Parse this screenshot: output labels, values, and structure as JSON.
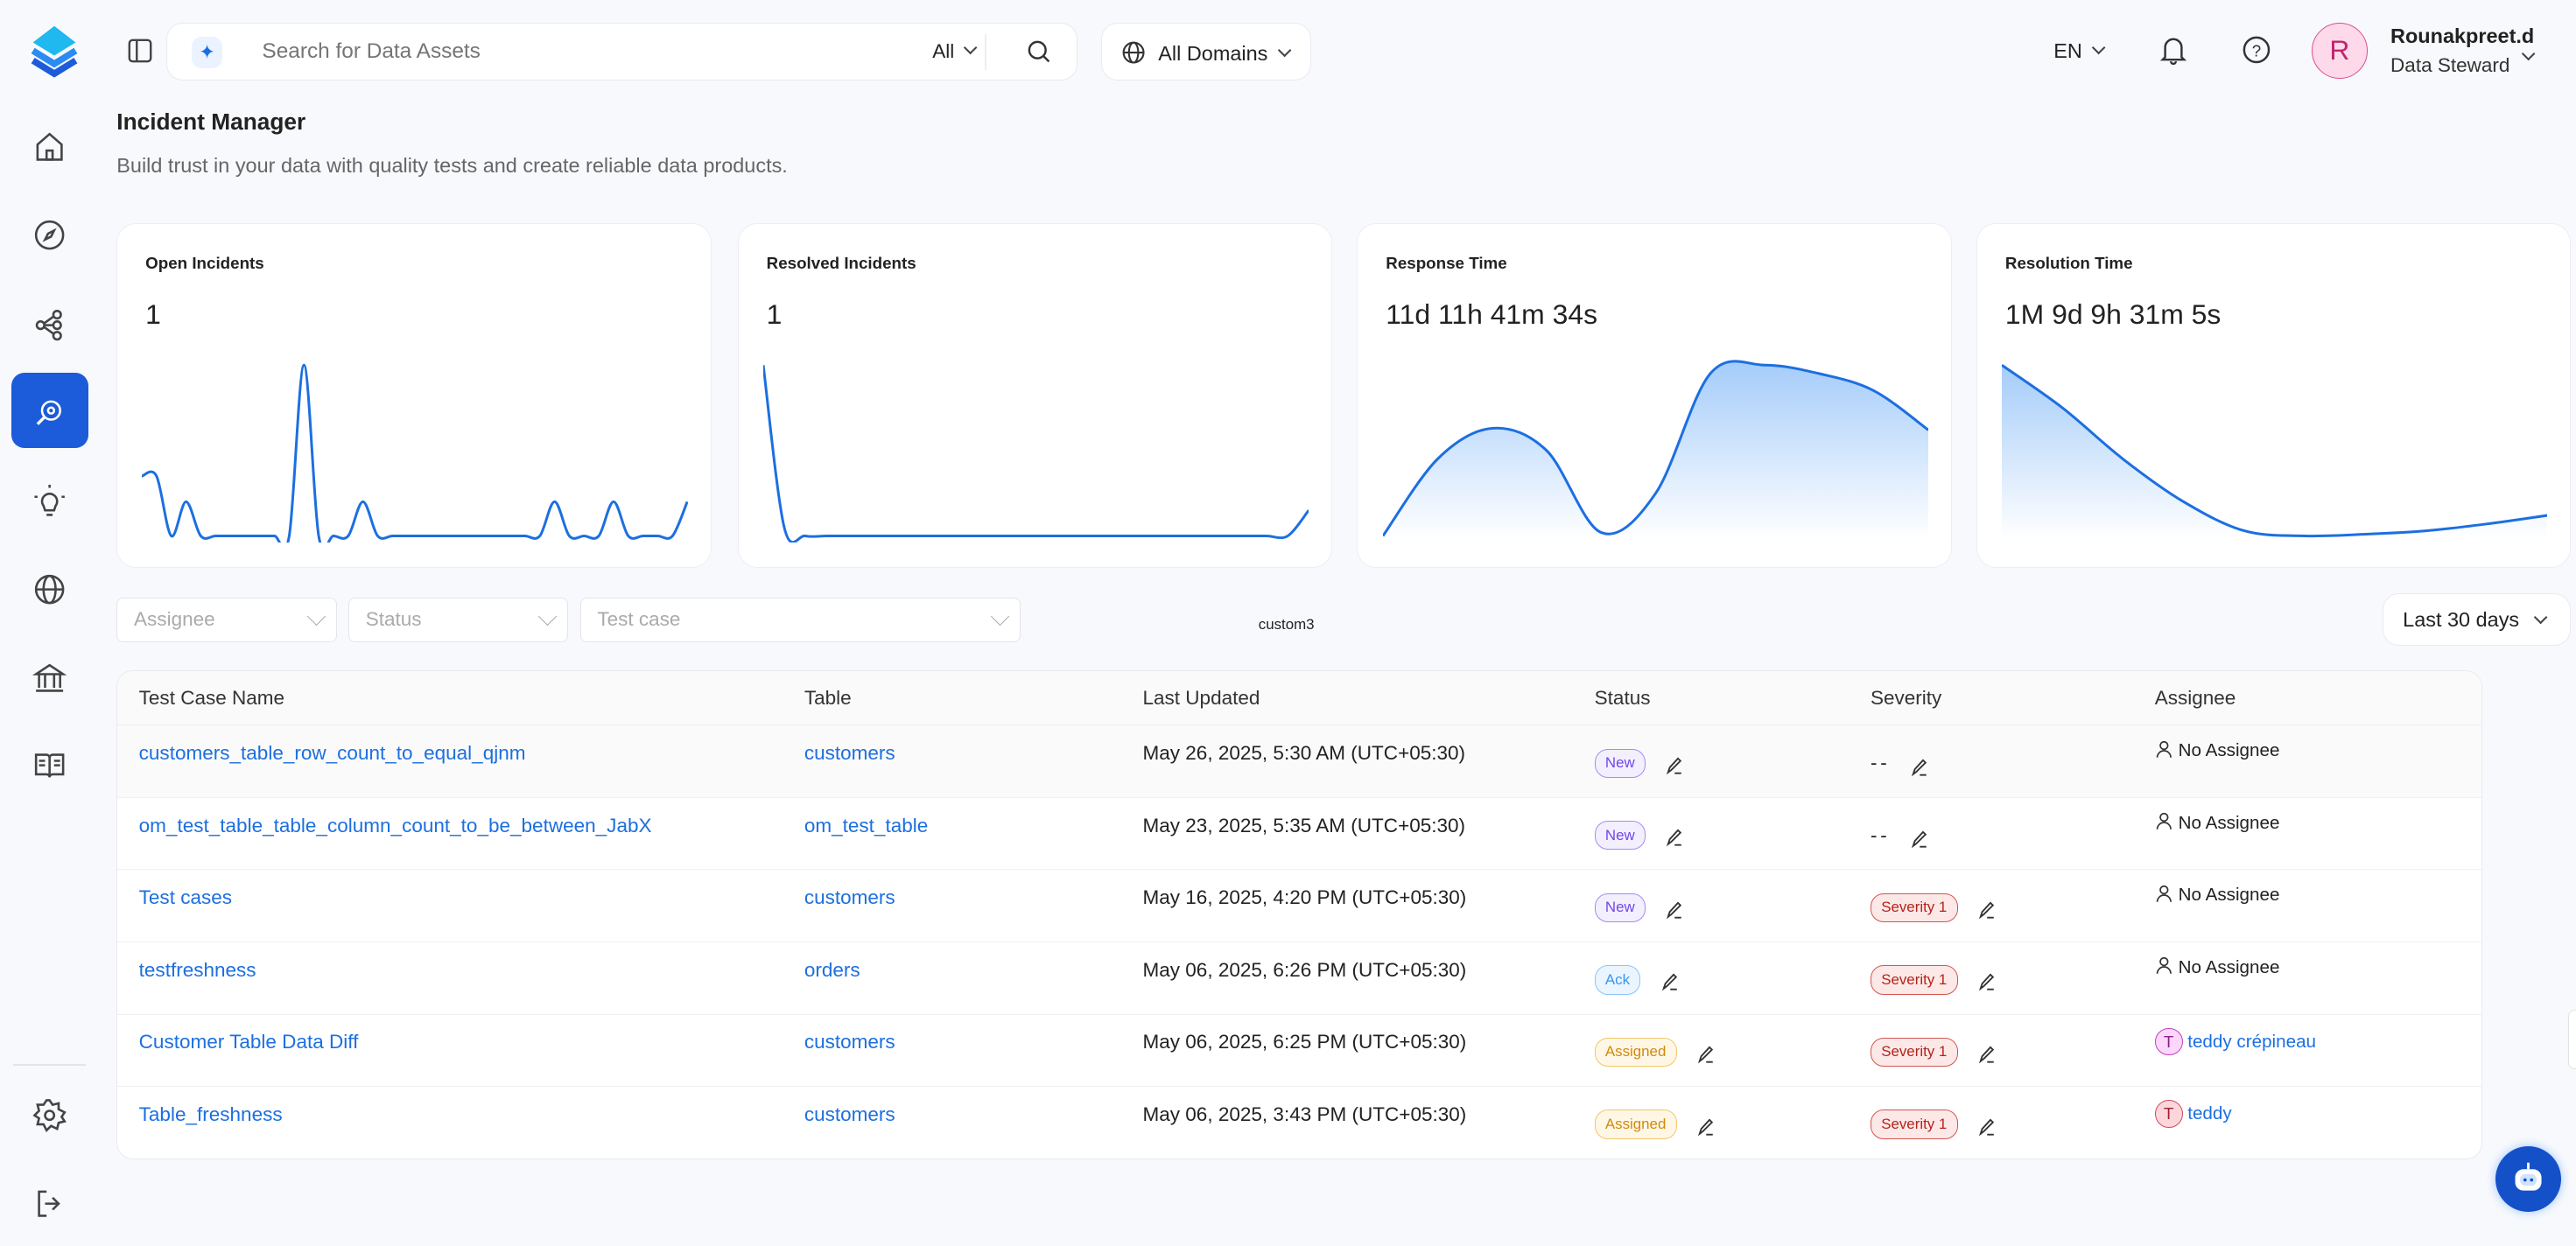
{
  "colors": {
    "accent": "#1c5bd9",
    "link": "#1c6fe0",
    "chart_line": "#1c6fe0"
  },
  "sidebar": {
    "items": [
      {
        "icon": "home-icon"
      },
      {
        "icon": "explore-compass-icon"
      },
      {
        "icon": "lineage-icon"
      },
      {
        "icon": "data-quality-icon",
        "active": true
      },
      {
        "icon": "insights-bulb-icon"
      },
      {
        "icon": "domains-globe-icon"
      },
      {
        "icon": "governance-bank-icon"
      },
      {
        "icon": "glossary-book-icon"
      }
    ],
    "bottom": [
      {
        "icon": "settings-gear-icon"
      },
      {
        "icon": "logout-icon"
      }
    ]
  },
  "header": {
    "search_placeholder": "Search for Data Assets",
    "search_scope": "All",
    "domains": "All Domains",
    "language": "EN",
    "user": {
      "initial": "R",
      "name": "Rounakpreet.d",
      "role": "Data Steward"
    }
  },
  "page": {
    "title": "Incident Manager",
    "subtitle": "Build trust in your data with quality tests and create reliable data products."
  },
  "cards": [
    {
      "title": "Open Incidents",
      "value": "1"
    },
    {
      "title": "Resolved Incidents",
      "value": "1"
    },
    {
      "title": "Response Time",
      "value": "11d 11h 41m 34s"
    },
    {
      "title": "Resolution Time",
      "value": "1M 9d 9h 31m 5s"
    }
  ],
  "chart_data": [
    {
      "type": "line",
      "values": [
        0.35,
        0.35,
        0,
        0.2,
        0,
        0,
        0,
        0,
        0,
        0,
        0,
        1,
        0,
        0,
        0,
        0.2,
        0,
        0,
        0,
        0,
        0,
        0,
        0,
        0,
        0,
        0,
        0,
        0,
        0.2,
        0,
        0,
        0,
        0.2,
        0,
        0,
        0,
        0,
        0.2
      ]
    },
    {
      "type": "line",
      "values": [
        1,
        0.05,
        0,
        0,
        0,
        0,
        0,
        0,
        0,
        0,
        0,
        0,
        0,
        0,
        0,
        0,
        0,
        0,
        0,
        0,
        0,
        0,
        0,
        0,
        0,
        0,
        0.15
      ]
    },
    {
      "type": "area",
      "values": [
        0,
        0.45,
        0.63,
        0.5,
        0.02,
        0.25,
        0.95,
        1,
        0.95,
        0.85,
        0.62
      ]
    },
    {
      "type": "area",
      "values": [
        1,
        0.75,
        0.45,
        0.2,
        0.03,
        0,
        0.01,
        0.03,
        0.07,
        0.12
      ]
    }
  ],
  "filters": {
    "assignee": "Assignee",
    "status": "Status",
    "test_case": "Test case",
    "custom_label": "custom3",
    "date_range": "Last 30 days"
  },
  "table": {
    "columns": [
      "Test Case Name",
      "Table",
      "Last Updated",
      "Status",
      "Severity",
      "Assignee"
    ],
    "rows": [
      {
        "name": "customers_table_row_count_to_equal_qjnm",
        "table": "customers",
        "updated": "May 26, 2025, 5:30 AM (UTC+05:30)",
        "status": "New",
        "severity": "--",
        "assignee": "No Assignee"
      },
      {
        "name": "om_test_table_table_column_count_to_be_between_JabX",
        "table": "om_test_table",
        "updated": "May 23, 2025, 5:35 AM (UTC+05:30)",
        "status": "New",
        "severity": "--",
        "assignee": "No Assignee"
      },
      {
        "name": "Test cases",
        "table": "customers",
        "updated": "May 16, 2025, 4:20 PM (UTC+05:30)",
        "status": "New",
        "severity": "Severity 1",
        "assignee": "No Assignee"
      },
      {
        "name": "testfreshness",
        "table": "orders",
        "updated": "May 06, 2025, 6:26 PM (UTC+05:30)",
        "status": "Ack",
        "severity": "Severity 1",
        "assignee": "No Assignee"
      },
      {
        "name": "Customer Table Data Diff",
        "table": "customers",
        "updated": "May 06, 2025, 6:25 PM (UTC+05:30)",
        "status": "Assigned",
        "severity": "Severity 1",
        "assignee": "teddy crépineau",
        "assignee_initial": "T"
      },
      {
        "name": "Table_freshness",
        "table": "customers",
        "updated": "May 06, 2025, 3:43 PM (UTC+05:30)",
        "status": "Assigned",
        "severity": "Severity 1",
        "assignee": "teddy",
        "assignee_initial": "T"
      }
    ]
  }
}
